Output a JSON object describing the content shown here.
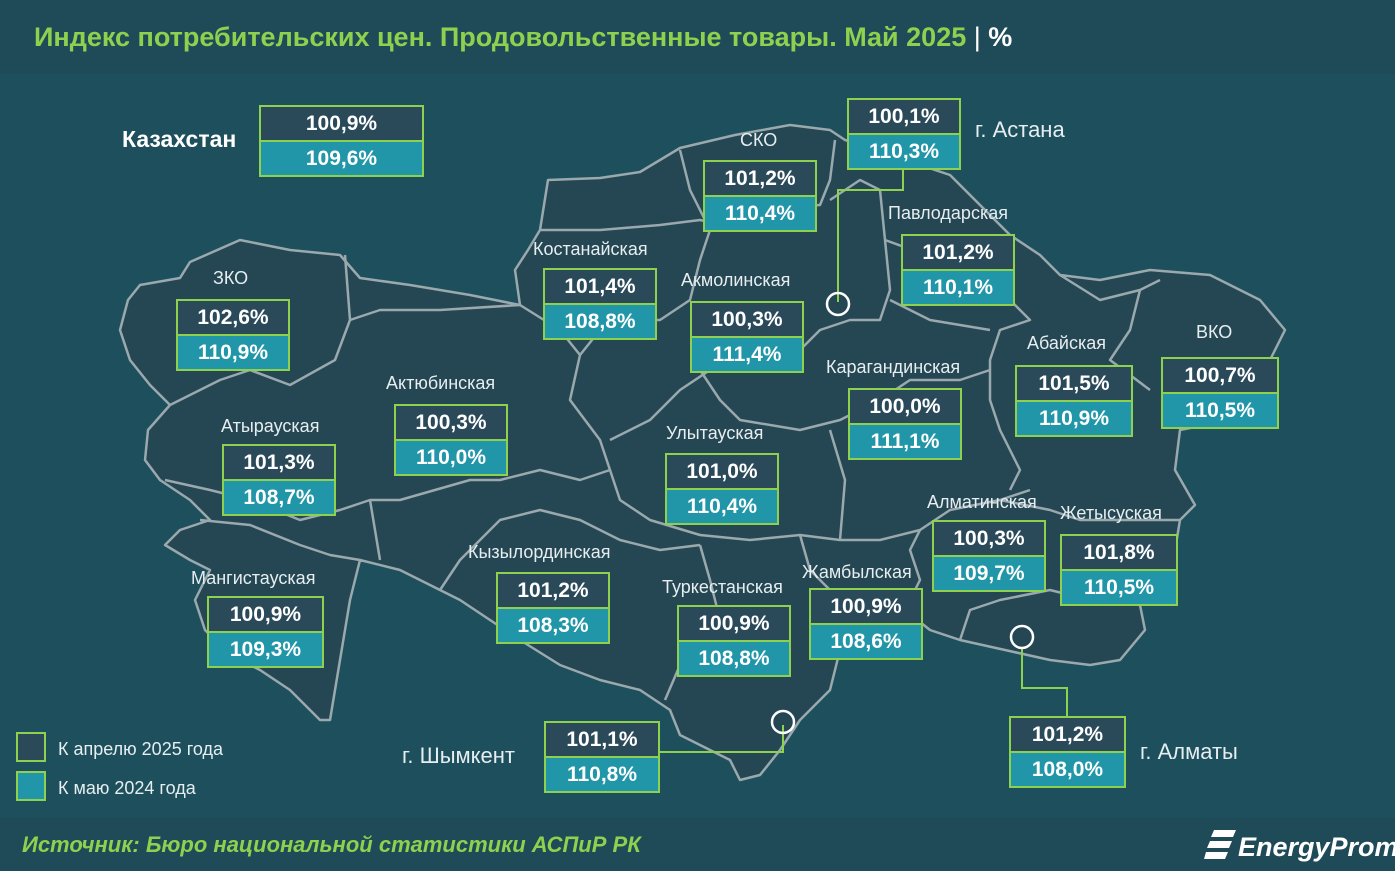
{
  "title": {
    "main": "Индекс потребительских цен. Продовольственные товары. Май 2025",
    "separator": "|",
    "unit": "%"
  },
  "kazakhstan": {
    "name": "Казахстан",
    "m2m": "100,9%",
    "y2y": "109,6%"
  },
  "regions": [
    {
      "name": "СКО",
      "m2m": "101,2%",
      "y2y": "110,4%"
    },
    {
      "name": "г. Астана",
      "m2m": "100,1%",
      "y2y": "110,3%"
    },
    {
      "name": "Павлодарская",
      "m2m": "101,2%",
      "y2y": "110,1%"
    },
    {
      "name": "Костанайская",
      "m2m": "101,4%",
      "y2y": "108,8%"
    },
    {
      "name": "Акмолинская",
      "m2m": "100,3%",
      "y2y": "111,4%"
    },
    {
      "name": "ЗКО",
      "m2m": "102,6%",
      "y2y": "110,9%"
    },
    {
      "name": "Абайская",
      "m2m": "101,5%",
      "y2y": "110,9%"
    },
    {
      "name": "ВКО",
      "m2m": "100,7%",
      "y2y": "110,5%"
    },
    {
      "name": "Актюбинская",
      "m2m": "100,3%",
      "y2y": "110,0%"
    },
    {
      "name": "Карагандинская",
      "m2m": "100,0%",
      "y2y": "111,1%"
    },
    {
      "name": "Атырауская",
      "m2m": "101,3%",
      "y2y": "108,7%"
    },
    {
      "name": "Улытауская",
      "m2m": "101,0%",
      "y2y": "110,4%"
    },
    {
      "name": "Алматинская",
      "m2m": "100,3%",
      "y2y": "109,7%"
    },
    {
      "name": "Жетысуская",
      "m2m": "101,8%",
      "y2y": "110,5%"
    },
    {
      "name": "Кызылординская",
      "m2m": "101,2%",
      "y2y": "108,3%"
    },
    {
      "name": "Мангистауская",
      "m2m": "100,9%",
      "y2y": "109,3%"
    },
    {
      "name": "Туркестанская",
      "m2m": "100,9%",
      "y2y": "108,8%"
    },
    {
      "name": "Жамбылская",
      "m2m": "100,9%",
      "y2y": "108,6%"
    },
    {
      "name": "г. Шымкент",
      "m2m": "101,1%",
      "y2y": "110,8%"
    },
    {
      "name": "г. Алматы",
      "m2m": "101,2%",
      "y2y": "108,0%"
    }
  ],
  "legend": {
    "m2m": {
      "label": "К апрелю 2025 года",
      "color": "#2a4a5a"
    },
    "y2y": {
      "label": "К маю 2024 года",
      "color": "#2196a8"
    }
  },
  "source": "Источник: Бюро национальной статистики АСПиР РК",
  "brand": "EnergyProm",
  "colors": {
    "accent": "#8ed14f",
    "background": "#1d4f5c",
    "region_fill": "#254653",
    "border": "#9aa9ae"
  }
}
